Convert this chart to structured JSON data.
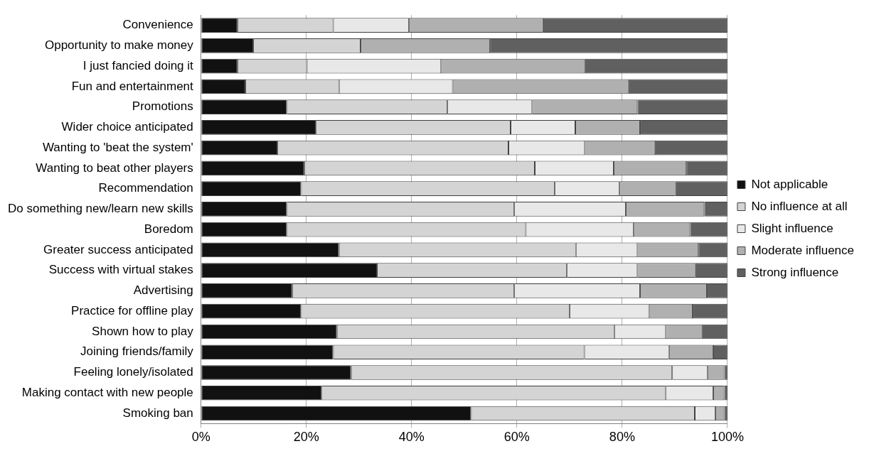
{
  "chart_data": {
    "type": "bar",
    "orientation": "horizontal",
    "stacked": true,
    "grid": "x",
    "legend": "right",
    "categories": [
      "Convenience",
      "Opportunity to make money",
      "I just fancied doing it",
      "Fun and entertainment",
      "Promotions",
      "Wider choice anticipated",
      "Wanting to 'beat the system'",
      "Wanting to beat other players",
      "Recommendation",
      "Do something new/learn new skills",
      "Boredom",
      "Greater success anticipated",
      "Success with virtual stakes",
      "Advertising",
      "Practice for offline play",
      "Shown how to play",
      "Joining friends/family",
      "Feeling lonely/isolated",
      "Making contact with new people",
      "Smoking ban"
    ],
    "xlim": [
      0,
      100
    ],
    "xticks": [
      {
        "value": 0,
        "label": "0%"
      },
      {
        "value": 20,
        "label": "20%"
      },
      {
        "value": 40,
        "label": "40%"
      },
      {
        "value": 60,
        "label": "60%"
      },
      {
        "value": 80,
        "label": "80%"
      },
      {
        "value": 100,
        "label": "100%"
      }
    ],
    "series": [
      {
        "name": "Not applicable",
        "color": "#111111",
        "values": [
          6.9,
          9.9,
          6.9,
          8.4,
          16.3,
          21.8,
          14.5,
          19.6,
          19.0,
          16.3,
          16.3,
          26.2,
          33.4,
          17.3,
          19.0,
          25.8,
          25.1,
          28.5,
          22.9,
          51.3
        ]
      },
      {
        "name": "No influence at all",
        "color": "#d4d4d4",
        "values": [
          18.2,
          20.4,
          13.2,
          17.8,
          30.5,
          37.0,
          43.9,
          43.8,
          48.2,
          43.2,
          45.4,
          45.0,
          36.1,
          42.2,
          51.0,
          52.7,
          47.7,
          61.0,
          65.4,
          42.5
        ]
      },
      {
        "name": "Slight influence",
        "color": "#e8e8e8",
        "values": [
          14.4,
          0,
          25.5,
          21.6,
          16.1,
          12.3,
          14.5,
          15.0,
          12.3,
          21.2,
          20.5,
          11.7,
          13.4,
          23.9,
          15.1,
          9.8,
          16.1,
          6.7,
          9.0,
          3.9
        ]
      },
      {
        "name": "Moderate influence",
        "color": "#b0b0b0",
        "values": [
          25.5,
          24.6,
          27.2,
          33.4,
          20.0,
          12.3,
          13.3,
          13.8,
          10.6,
          14.9,
          10.7,
          11.6,
          11.0,
          12.7,
          8.3,
          6.8,
          8.4,
          3.2,
          2.1,
          1.7
        ]
      },
      {
        "name": "Strong influence",
        "color": "#606060",
        "values": [
          35.0,
          45.1,
          27.2,
          18.8,
          17.1,
          16.6,
          13.8,
          7.8,
          9.9,
          4.4,
          7.1,
          5.5,
          6.1,
          3.9,
          6.6,
          4.9,
          2.7,
          0.6,
          0.6,
          0.6
        ]
      }
    ]
  }
}
